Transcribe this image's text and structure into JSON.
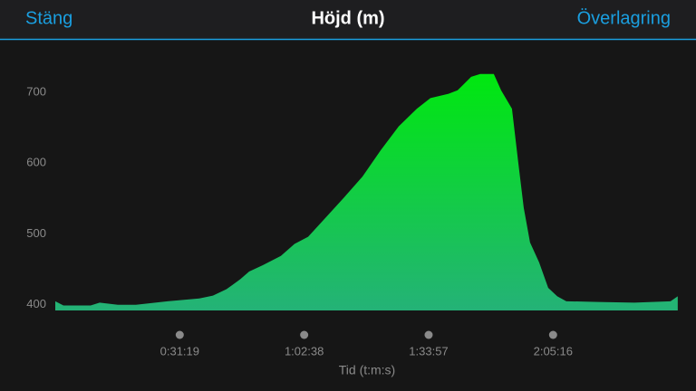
{
  "header": {
    "left": "Stäng",
    "title": "Höjd (m)",
    "right": "Överlagring"
  },
  "chart_data": {
    "type": "area",
    "x_label": "Tid (t:m:s)",
    "x": [
      0,
      123,
      534,
      670,
      944,
      1217,
      1696,
      2175,
      2380,
      2585,
      2791,
      2927,
      3133,
      3406,
      3612,
      3817,
      4091,
      4364,
      4638,
      4911,
      5185,
      5459,
      5664,
      5937,
      6074,
      6279,
      6416,
      6621,
      6731,
      6895,
      6990,
      7073,
      7168,
      7305,
      7442,
      7579,
      7716,
      8194,
      8742,
      9289,
      9398
    ],
    "values": [
      405,
      399,
      399,
      403,
      400,
      400,
      405,
      409,
      413,
      422,
      436,
      447,
      456,
      469,
      486,
      496,
      524,
      552,
      581,
      618,
      652,
      677,
      692,
      698,
      703,
      722,
      726,
      726,
      703,
      677,
      601,
      537,
      488,
      460,
      424,
      412,
      405,
      404,
      403,
      405,
      412
    ],
    "color": [
      "#00e80f",
      "#24b277"
    ],
    "xlim": [
      0,
      9400
    ],
    "ylim": [
      392,
      773
    ],
    "xticks": [
      {
        "value": 1879,
        "label": "0:31:19"
      },
      {
        "value": 3758,
        "label": "1:02:38"
      },
      {
        "value": 5637,
        "label": "1:33:57"
      },
      {
        "value": 7516,
        "label": "2:05:16"
      }
    ],
    "yticks": [
      400,
      500,
      600,
      700
    ]
  }
}
